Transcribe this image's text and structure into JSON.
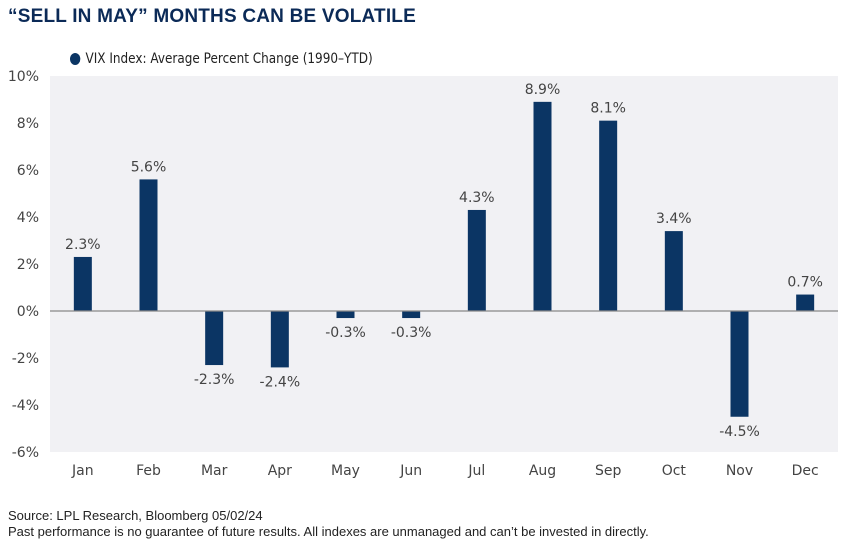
{
  "title": "“SELL IN MAY” MONTHS CAN BE VOLATILE",
  "footer": {
    "source": "Source: LPL Research, Bloomberg 05/02/24",
    "disclaimer": "Past performance is no guarantee of future results. All indexes are unmanaged and can’t be invested in directly."
  },
  "colors": {
    "bar": "#0b3564",
    "plot_bg": "#f1f1f4",
    "title": "#0b2a57",
    "zero_line": "#888888"
  },
  "chart_data": {
    "type": "bar",
    "title": "“SELL IN MAY” MONTHS CAN BE VOLATILE",
    "xlabel": "",
    "ylabel": "",
    "legend": {
      "entries": [
        "VIX Index: Average Percent Change (1990–YTD)"
      ],
      "placement": "top-left"
    },
    "categories": [
      "Jan",
      "Feb",
      "Mar",
      "Apr",
      "May",
      "Jun",
      "Jul",
      "Aug",
      "Sep",
      "Oct",
      "Nov",
      "Dec"
    ],
    "series": [
      {
        "name": "VIX Index: Average Percent Change (1990–YTD)",
        "values": [
          2.3,
          5.6,
          -2.3,
          -2.4,
          -0.3,
          -0.3,
          4.3,
          8.9,
          8.1,
          3.4,
          -4.5,
          0.7
        ]
      }
    ],
    "data_labels": [
      "2.3%",
      "5.6%",
      "-2.3%",
      "-2.4%",
      "-0.3%",
      "-0.3%",
      "4.3%",
      "8.9%",
      "8.1%",
      "3.4%",
      "-4.5%",
      "0.7%"
    ],
    "yticks": [
      10,
      8,
      6,
      4,
      2,
      0,
      -2,
      -4,
      -6
    ],
    "ytick_labels": [
      "10%",
      "8%",
      "6%",
      "4%",
      "2%",
      "0%",
      "-2%",
      "-4%",
      "-6%"
    ],
    "ylim": [
      -6,
      10
    ],
    "grid": false
  }
}
